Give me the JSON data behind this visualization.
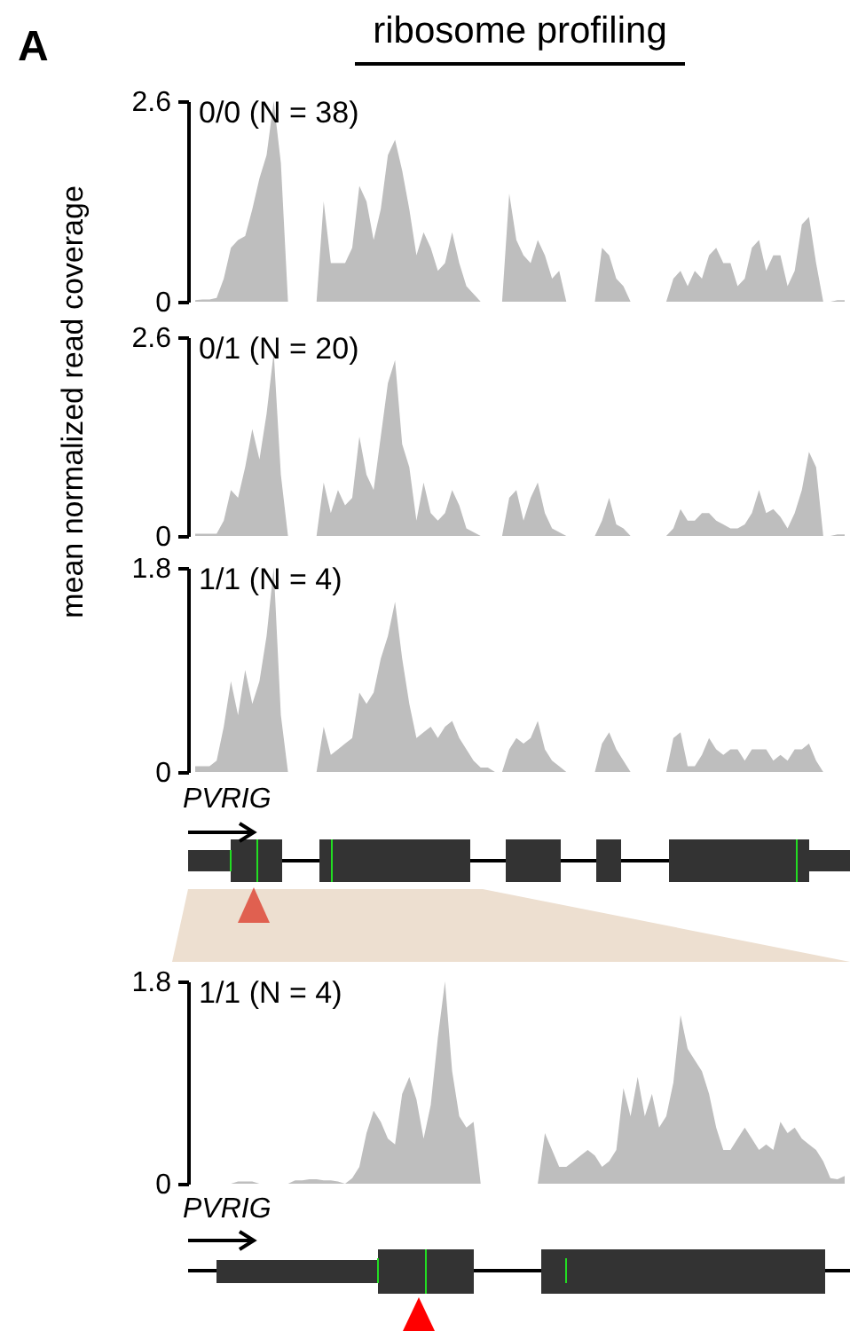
{
  "chart_data": [
    {
      "type": "area",
      "title": "ribosome profiling",
      "subtitle": "0/0 (N = 38)",
      "annotations": [
        "A"
      ],
      "color": "#bebebe",
      "ylim": [
        0,
        2.6
      ],
      "yticks": [
        0,
        2.6
      ],
      "categories": [
        null,
        null,
        null,
        null,
        null,
        null,
        null,
        null,
        null,
        null,
        null,
        null,
        null,
        null,
        null,
        null,
        null,
        null,
        null,
        null,
        null,
        null,
        null,
        null,
        null,
        null,
        null,
        null,
        null,
        null,
        null,
        null,
        null,
        null,
        null,
        null,
        null,
        null,
        null,
        null,
        null,
        null,
        null,
        null,
        null,
        null,
        null,
        null,
        null,
        null,
        null,
        null,
        null,
        null,
        null,
        null,
        null,
        null,
        null,
        null,
        null,
        null,
        null,
        null,
        null,
        null,
        null,
        null,
        null,
        null,
        null,
        null,
        null,
        null,
        null,
        null,
        null,
        null,
        null,
        null,
        null,
        null,
        null,
        null,
        null,
        null,
        null,
        null,
        null,
        null,
        null,
        null
      ],
      "values": [
        0.02,
        0.03,
        0.03,
        0.05,
        0.3,
        0.7,
        0.8,
        0.85,
        1.2,
        1.6,
        1.9,
        2.6,
        1.8,
        0,
        0,
        0,
        0,
        0,
        1.3,
        0.5,
        0.5,
        0.5,
        0.7,
        1.5,
        1.3,
        0.8,
        1.2,
        1.9,
        2.1,
        1.7,
        1.2,
        0.6,
        0.9,
        0.7,
        0.4,
        0.5,
        0.9,
        0.5,
        0.2,
        0.1,
        0,
        0,
        0,
        0,
        1.4,
        0.8,
        0.6,
        0.5,
        0.8,
        0.6,
        0.3,
        0.4,
        0,
        0,
        0,
        0,
        0,
        0.7,
        0.6,
        0.3,
        0.2,
        0,
        0,
        0,
        0,
        0,
        0,
        0.3,
        0.4,
        0.2,
        0.4,
        0.3,
        0.6,
        0.7,
        0.5,
        0.5,
        0.2,
        0.3,
        0.7,
        0.8,
        0.4,
        0.6,
        0.6,
        0.2,
        0.4,
        1.0,
        1.1,
        0.5,
        0,
        0,
        0.02,
        0.02
      ]
    },
    {
      "type": "area",
      "subtitle": "0/1 (N = 20)",
      "ylabel": "mean normalized read coverage",
      "color": "#bebebe",
      "ylim": [
        0,
        2.6
      ],
      "yticks": [
        0,
        2.6
      ],
      "categories": [
        null,
        null,
        null,
        null,
        null,
        null,
        null,
        null,
        null,
        null,
        null,
        null,
        null,
        null,
        null,
        null,
        null,
        null,
        null,
        null,
        null,
        null,
        null,
        null,
        null,
        null,
        null,
        null,
        null,
        null,
        null,
        null,
        null,
        null,
        null,
        null,
        null,
        null,
        null,
        null,
        null,
        null,
        null,
        null,
        null,
        null,
        null,
        null,
        null,
        null,
        null,
        null,
        null,
        null,
        null,
        null,
        null,
        null,
        null,
        null,
        null,
        null,
        null,
        null,
        null,
        null,
        null,
        null,
        null,
        null,
        null,
        null,
        null,
        null,
        null,
        null,
        null,
        null,
        null,
        null,
        null,
        null,
        null,
        null,
        null,
        null,
        null,
        null,
        null,
        null,
        null,
        null
      ],
      "values": [
        0.03,
        0.03,
        0.03,
        0.03,
        0.2,
        0.6,
        0.5,
        0.9,
        1.4,
        1.0,
        1.6,
        2.4,
        0.8,
        0,
        0,
        0,
        0,
        0,
        0.7,
        0.3,
        0.6,
        0.4,
        0.5,
        1.3,
        0.8,
        0.6,
        1.3,
        2.0,
        2.3,
        1.2,
        0.9,
        0.2,
        0.7,
        0.3,
        0.2,
        0.3,
        0.6,
        0.4,
        0.1,
        0.05,
        0,
        0,
        0,
        0,
        0.5,
        0.6,
        0.2,
        0.5,
        0.7,
        0.3,
        0.1,
        0.05,
        0,
        0,
        0,
        0,
        0,
        0.2,
        0.5,
        0.15,
        0.1,
        0,
        0,
        0,
        0,
        0,
        0,
        0.1,
        0.35,
        0.2,
        0.2,
        0.3,
        0.3,
        0.2,
        0.15,
        0.1,
        0.1,
        0.15,
        0.3,
        0.6,
        0.3,
        0.35,
        0.25,
        0.1,
        0.3,
        0.6,
        1.1,
        0.9,
        0,
        0,
        0.02,
        0.02
      ]
    },
    {
      "type": "area",
      "subtitle": "1/1 (N = 4)",
      "annotations": [
        "PVRIG"
      ],
      "color": "#bebebe",
      "ylim": [
        0,
        1.8
      ],
      "yticks": [
        0,
        1.8
      ],
      "categories": [
        null,
        null,
        null,
        null,
        null,
        null,
        null,
        null,
        null,
        null,
        null,
        null,
        null,
        null,
        null,
        null,
        null,
        null,
        null,
        null,
        null,
        null,
        null,
        null,
        null,
        null,
        null,
        null,
        null,
        null,
        null,
        null,
        null,
        null,
        null,
        null,
        null,
        null,
        null,
        null,
        null,
        null,
        null,
        null,
        null,
        null,
        null,
        null,
        null,
        null,
        null,
        null,
        null,
        null,
        null,
        null,
        null,
        null,
        null,
        null,
        null,
        null,
        null,
        null,
        null,
        null,
        null,
        null,
        null,
        null,
        null,
        null,
        null,
        null,
        null,
        null,
        null,
        null,
        null,
        null,
        null,
        null,
        null,
        null,
        null,
        null,
        null,
        null,
        null,
        null,
        null,
        null
      ],
      "values": [
        0.05,
        0.05,
        0.05,
        0.1,
        0.4,
        0.8,
        0.5,
        0.9,
        0.6,
        0.8,
        1.2,
        1.8,
        0.5,
        0,
        0,
        0,
        0,
        0,
        0.4,
        0.15,
        0.2,
        0.25,
        0.3,
        0.7,
        0.6,
        0.7,
        1.0,
        1.2,
        1.5,
        1.0,
        0.6,
        0.3,
        0.35,
        0.4,
        0.3,
        0.4,
        0.45,
        0.3,
        0.2,
        0.1,
        0.04,
        0.04,
        0,
        0,
        0.2,
        0.3,
        0.25,
        0.3,
        0.45,
        0.2,
        0.1,
        0.05,
        0,
        0,
        0,
        0,
        0,
        0.25,
        0.35,
        0.2,
        0.1,
        0,
        0,
        0,
        0,
        0,
        0,
        0.3,
        0.35,
        0.05,
        0.05,
        0.15,
        0.3,
        0.2,
        0.15,
        0.2,
        0.2,
        0.1,
        0.2,
        0.2,
        0.2,
        0.1,
        0.15,
        0.1,
        0.2,
        0.2,
        0.25,
        0.1,
        0,
        0,
        0,
        0
      ]
    },
    {
      "type": "area",
      "subtitle": "1/1 (N = 4)",
      "annotations": [
        "PVRIG"
      ],
      "color": "#bebebe",
      "ylim": [
        0,
        1.8
      ],
      "yticks": [
        0,
        1.8
      ],
      "categories": [
        null,
        null,
        null,
        null,
        null,
        null,
        null,
        null,
        null,
        null,
        null,
        null,
        null,
        null,
        null,
        null,
        null,
        null,
        null,
        null,
        null,
        null,
        null,
        null,
        null,
        null,
        null,
        null,
        null,
        null,
        null,
        null,
        null,
        null,
        null,
        null,
        null,
        null,
        null,
        null,
        null,
        null,
        null,
        null,
        null,
        null,
        null,
        null,
        null,
        null,
        null,
        null,
        null,
        null,
        null,
        null,
        null,
        null,
        null,
        null,
        null,
        null,
        null,
        null,
        null,
        null,
        null,
        null,
        null,
        null,
        null,
        null,
        null,
        null,
        null,
        null,
        null,
        null,
        null,
        null,
        null,
        null,
        null,
        null,
        null,
        null,
        null,
        null,
        null,
        null,
        null,
        null
      ],
      "values": [
        0,
        0,
        0,
        0,
        0,
        0,
        0.02,
        0.02,
        0.02,
        0,
        0,
        0,
        0,
        0,
        0.03,
        0.03,
        0.04,
        0.04,
        0.03,
        0.03,
        0.02,
        0,
        0.05,
        0.15,
        0.45,
        0.65,
        0.55,
        0.4,
        0.35,
        0.8,
        0.95,
        0.75,
        0.4,
        0.7,
        1.3,
        1.8,
        1.0,
        0.6,
        0.5,
        0.55,
        0,
        0,
        0,
        0,
        0,
        0,
        0,
        0,
        0,
        0.45,
        0.3,
        0.15,
        0.15,
        0.2,
        0.25,
        0.3,
        0.25,
        0.15,
        0.2,
        0.3,
        0.85,
        0.6,
        0.95,
        0.6,
        0.8,
        0.5,
        0.6,
        0.9,
        1.5,
        1.2,
        1.1,
        1.0,
        0.8,
        0.5,
        0.3,
        0.3,
        0.4,
        0.5,
        0.4,
        0.3,
        0.35,
        0.3,
        0.55,
        0.45,
        0.5,
        0.4,
        0.35,
        0.3,
        0.2,
        0.05,
        0.04,
        0.07
      ]
    }
  ]
}
